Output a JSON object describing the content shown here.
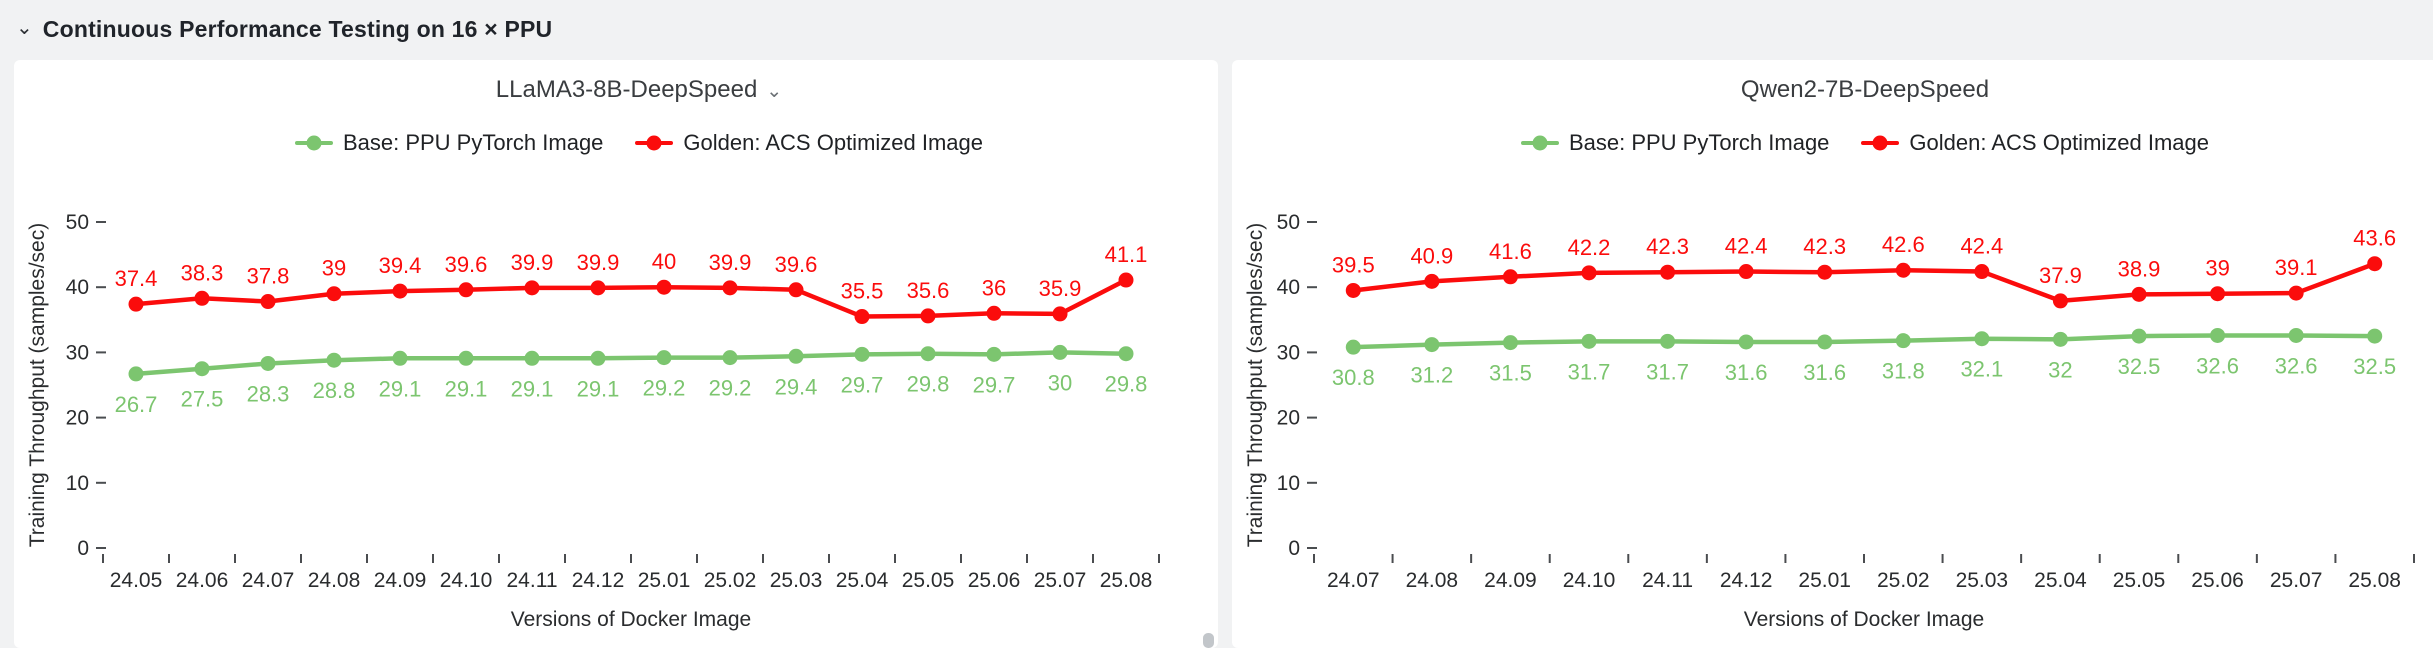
{
  "header": {
    "title": "Continuous Performance Testing on 16 × PPU"
  },
  "colors": {
    "base_green": "#7cc56f",
    "golden_red": "#fb0c0c",
    "axis_text": "#2a2c2e",
    "page_bg": "#f1f2f3",
    "card_bg": "#ffffff"
  },
  "chart_data": [
    {
      "type": "line",
      "title": "LLaMA3-8B-DeepSpeed",
      "title_has_dropdown": true,
      "xlabel": "Versions of Docker Image",
      "ylabel": "Training Throughput (samples/sec)",
      "ylim": [
        0,
        50
      ],
      "yticks": [
        0,
        10,
        20,
        30,
        40,
        50
      ],
      "grid": false,
      "legend_position": "top",
      "categories": [
        "24.05",
        "24.06",
        "24.07",
        "24.08",
        "24.09",
        "24.10",
        "24.11",
        "24.12",
        "25.01",
        "25.02",
        "25.03",
        "25.04",
        "25.05",
        "25.06",
        "25.07",
        "25.08"
      ],
      "series": [
        {
          "name": "Base: PPU PyTorch Image",
          "color": "#7cc56f",
          "label_position": "below",
          "values": [
            26.7,
            27.5,
            28.3,
            28.8,
            29.1,
            29.1,
            29.1,
            29.1,
            29.2,
            29.2,
            29.4,
            29.7,
            29.8,
            29.7,
            30,
            29.8
          ]
        },
        {
          "name": "Golden: ACS Optimized Image",
          "color": "#fb0c0c",
          "label_position": "above",
          "values": [
            37.4,
            38.3,
            37.8,
            39,
            39.4,
            39.6,
            39.9,
            39.9,
            40,
            39.9,
            39.6,
            35.5,
            35.6,
            36,
            35.9,
            41.1
          ]
        }
      ]
    },
    {
      "type": "line",
      "title": "Qwen2-7B-DeepSpeed",
      "title_has_dropdown": false,
      "xlabel": "Versions of Docker Image",
      "ylabel": "Training Throughput (samples/sec)",
      "ylim": [
        0,
        50
      ],
      "yticks": [
        0,
        10,
        20,
        30,
        40,
        50
      ],
      "grid": false,
      "legend_position": "top",
      "categories": [
        "24.07",
        "24.08",
        "24.09",
        "24.10",
        "24.11",
        "24.12",
        "25.01",
        "25.02",
        "25.03",
        "25.04",
        "25.05",
        "25.06",
        "25.07",
        "25.08"
      ],
      "series": [
        {
          "name": "Base: PPU PyTorch Image",
          "color": "#7cc56f",
          "label_position": "below",
          "values": [
            30.8,
            31.2,
            31.5,
            31.7,
            31.7,
            31.6,
            31.6,
            31.8,
            32.1,
            32,
            32.5,
            32.6,
            32.6,
            32.5
          ]
        },
        {
          "name": "Golden: ACS Optimized Image",
          "color": "#fb0c0c",
          "label_position": "above",
          "values": [
            39.5,
            40.9,
            41.6,
            42.2,
            42.3,
            42.4,
            42.3,
            42.6,
            42.4,
            37.9,
            38.9,
            39,
            39.1,
            43.6
          ]
        }
      ]
    }
  ]
}
